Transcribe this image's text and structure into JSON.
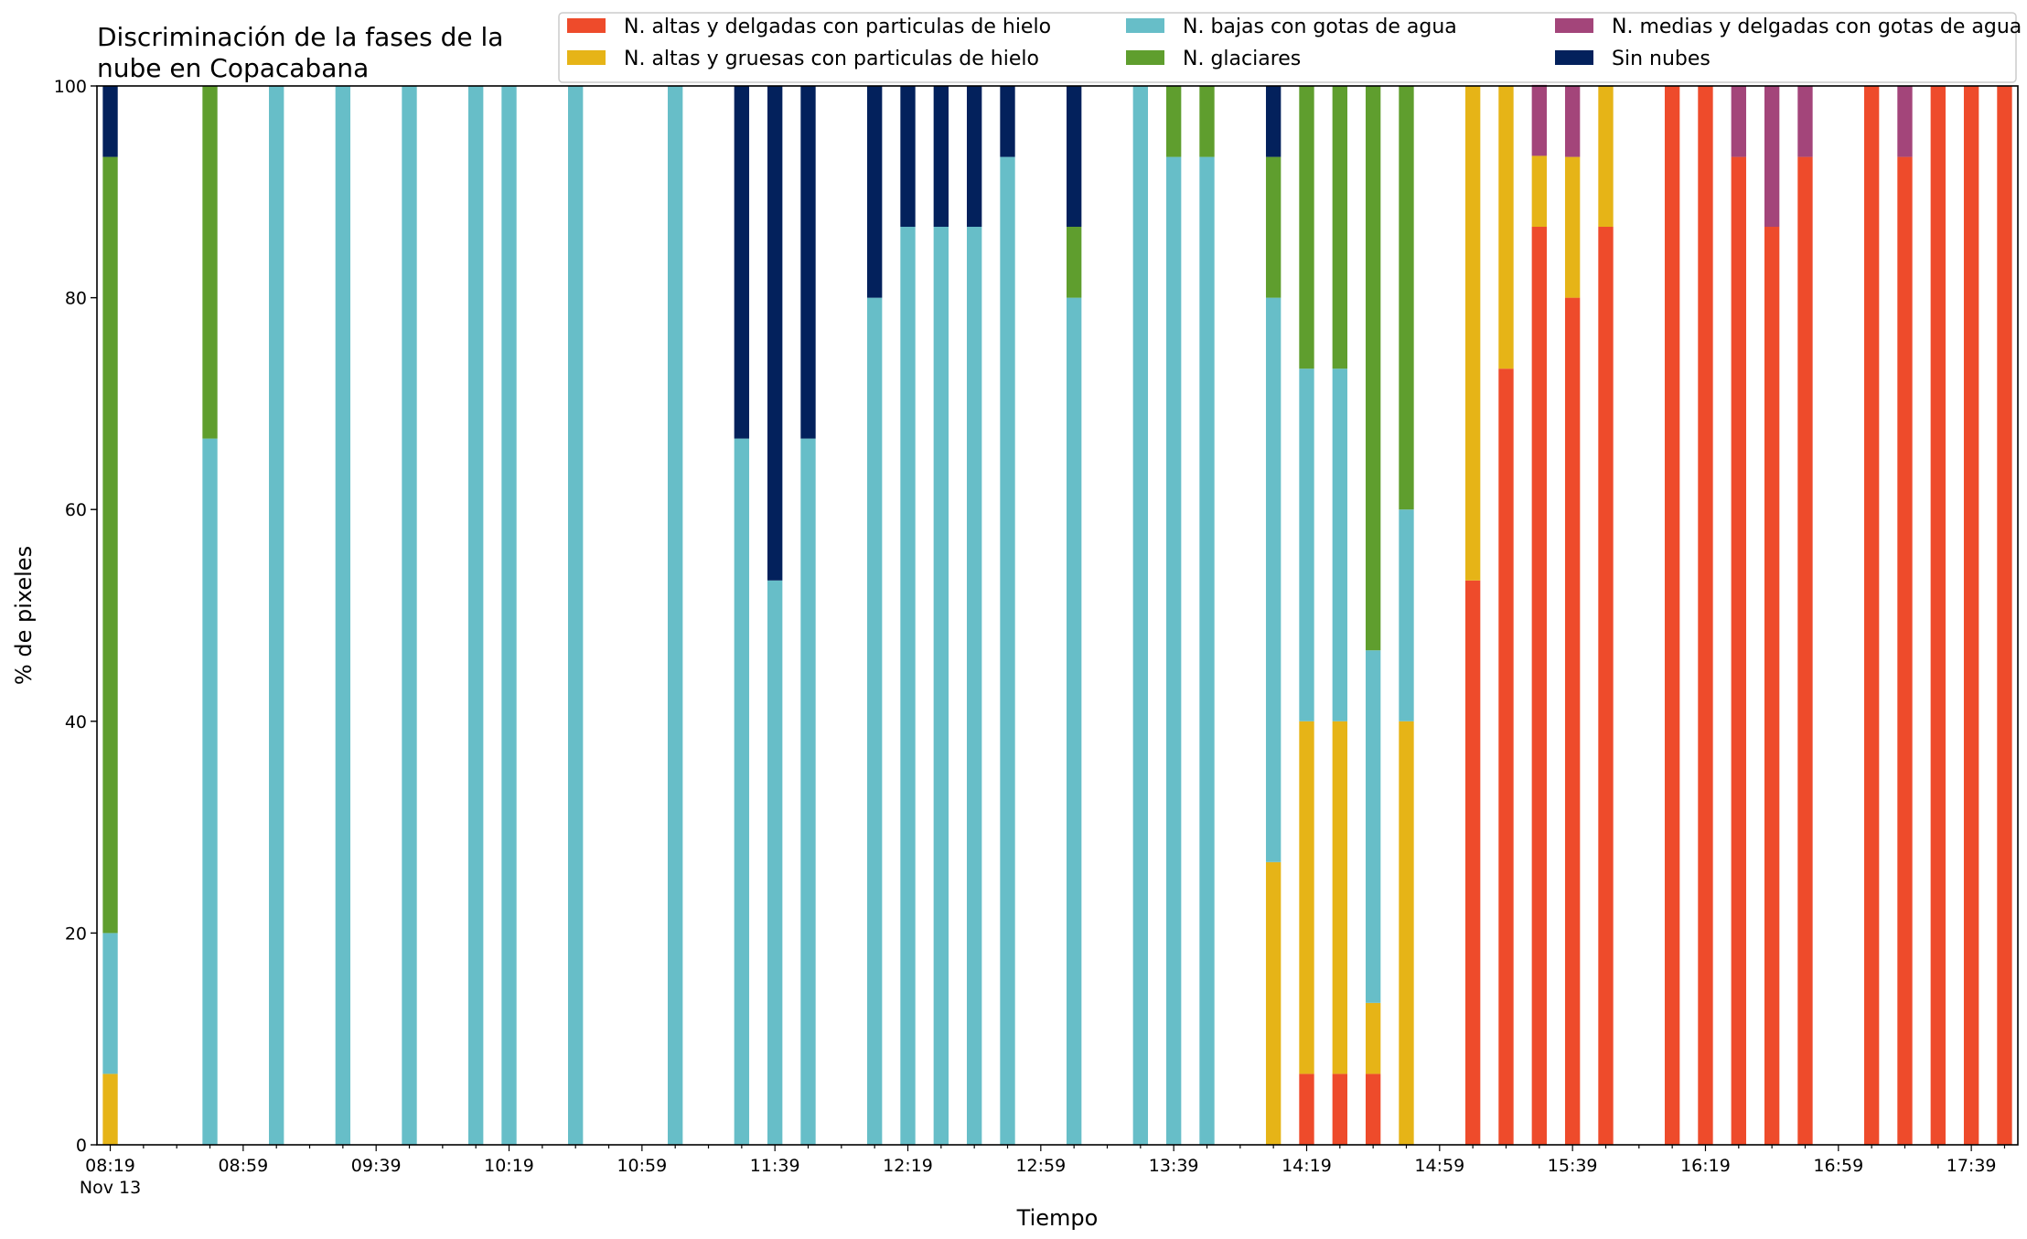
{
  "chart_data": {
    "type": "bar",
    "stacked": true,
    "title_lines": [
      "Discriminación de la fases de la",
      "nube en Copacabana"
    ],
    "xlabel": "Tiempo",
    "ylabel": "% de pixeles",
    "ylim": [
      0,
      100
    ],
    "yticks": [
      0,
      20,
      40,
      60,
      80,
      100
    ],
    "xlim_minutes": [
      495,
      1073
    ],
    "x_tick_times": [
      "08:19",
      "08:59",
      "09:39",
      "10:19",
      "10:59",
      "11:39",
      "12:19",
      "12:59",
      "13:39",
      "14:19",
      "14:59",
      "15:39",
      "16:19",
      "16:59",
      "17:39"
    ],
    "x_date_label": "Nov 13",
    "grid": false,
    "legend_position": "top",
    "series": [
      {
        "name": "N. altas y delgadas con particulas de hielo",
        "color": "#ee4b2b"
      },
      {
        "name": "N. altas y gruesas con particulas de hielo",
        "color": "#e6b417"
      },
      {
        "name": "N. bajas con gotas de agua",
        "color": "#67bec8"
      },
      {
        "name": "N. glaciares",
        "color": "#5f9e2e"
      },
      {
        "name": "N. medias y delgadas con gotas de agua",
        "color": "#a3457a"
      },
      {
        "name": "Sin nubes",
        "color": "#03215c"
      }
    ],
    "bars": [
      {
        "time": "08:19",
        "values": [
          0,
          6.7,
          13.3,
          73.3,
          0,
          6.7
        ]
      },
      {
        "time": "08:49",
        "values": [
          0,
          0,
          66.7,
          33.3,
          0,
          0
        ]
      },
      {
        "time": "09:09",
        "values": [
          0,
          0,
          100,
          0,
          0,
          0
        ]
      },
      {
        "time": "09:29",
        "values": [
          0,
          0,
          100,
          0,
          0,
          0
        ]
      },
      {
        "time": "09:49",
        "values": [
          0,
          0,
          100,
          0,
          0,
          0
        ]
      },
      {
        "time": "10:09",
        "values": [
          0,
          0,
          100,
          0,
          0,
          0
        ]
      },
      {
        "time": "10:19",
        "values": [
          0,
          0,
          100,
          0,
          0,
          0
        ]
      },
      {
        "time": "10:39",
        "values": [
          0,
          0,
          100,
          0,
          0,
          0
        ]
      },
      {
        "time": "11:09",
        "values": [
          0,
          0,
          100,
          0,
          0,
          0
        ]
      },
      {
        "time": "11:29",
        "values": [
          0,
          0,
          66.7,
          0,
          0,
          33.3
        ]
      },
      {
        "time": "11:39",
        "values": [
          0,
          0,
          53.3,
          0,
          0,
          46.7
        ]
      },
      {
        "time": "11:49",
        "values": [
          0,
          0,
          66.7,
          0,
          0,
          33.3
        ]
      },
      {
        "time": "12:09",
        "values": [
          0,
          0,
          80,
          0,
          0,
          20
        ]
      },
      {
        "time": "12:19",
        "values": [
          0,
          0,
          86.7,
          0,
          0,
          13.3
        ]
      },
      {
        "time": "12:29",
        "values": [
          0,
          0,
          86.7,
          0,
          0,
          13.3
        ]
      },
      {
        "time": "12:39",
        "values": [
          0,
          0,
          86.7,
          0,
          0,
          13.3
        ]
      },
      {
        "time": "12:49",
        "values": [
          0,
          0,
          93.3,
          0,
          0,
          6.7
        ]
      },
      {
        "time": "13:09",
        "values": [
          0,
          0,
          80,
          6.7,
          0,
          13.3
        ]
      },
      {
        "time": "13:29",
        "values": [
          0,
          0,
          100,
          0,
          0,
          0
        ]
      },
      {
        "time": "13:39",
        "values": [
          0,
          0,
          93.3,
          6.7,
          0,
          0
        ]
      },
      {
        "time": "13:49",
        "values": [
          0,
          0,
          93.3,
          6.7,
          0,
          0
        ]
      },
      {
        "time": "14:09",
        "values": [
          0,
          26.7,
          53.3,
          13.3,
          0,
          6.7
        ]
      },
      {
        "time": "14:19",
        "values": [
          6.7,
          33.3,
          33.3,
          26.7,
          0,
          0
        ]
      },
      {
        "time": "14:29",
        "values": [
          6.7,
          33.3,
          33.3,
          26.7,
          0,
          0
        ]
      },
      {
        "time": "14:39",
        "values": [
          6.7,
          6.7,
          33.3,
          53.3,
          0,
          0
        ]
      },
      {
        "time": "14:49",
        "values": [
          0,
          40,
          20,
          40,
          0,
          0
        ]
      },
      {
        "time": "15:09",
        "values": [
          53.3,
          46.7,
          0,
          0,
          0,
          0
        ]
      },
      {
        "time": "15:19",
        "values": [
          73.3,
          26.7,
          0,
          0,
          0,
          0
        ]
      },
      {
        "time": "15:29",
        "values": [
          86.7,
          6.7,
          0,
          0,
          6.7,
          0
        ]
      },
      {
        "time": "15:39",
        "values": [
          80,
          13.3,
          0,
          0,
          6.7,
          0
        ]
      },
      {
        "time": "15:49",
        "values": [
          86.7,
          13.3,
          0,
          0,
          0,
          0
        ]
      },
      {
        "time": "16:09",
        "values": [
          100,
          0,
          0,
          0,
          0,
          0
        ]
      },
      {
        "time": "16:19",
        "values": [
          100,
          0,
          0,
          0,
          0,
          0
        ]
      },
      {
        "time": "16:29",
        "values": [
          93.3,
          0,
          0,
          0,
          6.7,
          0
        ]
      },
      {
        "time": "16:39",
        "values": [
          86.7,
          0,
          0,
          0,
          13.3,
          0
        ]
      },
      {
        "time": "16:49",
        "values": [
          93.3,
          0,
          0,
          0,
          6.7,
          0
        ]
      },
      {
        "time": "17:09",
        "values": [
          100,
          0,
          0,
          0,
          0,
          0
        ]
      },
      {
        "time": "17:19",
        "values": [
          93.3,
          0,
          0,
          0,
          6.7,
          0
        ]
      },
      {
        "time": "17:29",
        "values": [
          100,
          0,
          0,
          0,
          0,
          0
        ]
      },
      {
        "time": "17:39",
        "values": [
          100,
          0,
          0,
          0,
          0,
          0
        ]
      },
      {
        "time": "17:49",
        "values": [
          100,
          0,
          0,
          0,
          0,
          0
        ]
      }
    ]
  }
}
